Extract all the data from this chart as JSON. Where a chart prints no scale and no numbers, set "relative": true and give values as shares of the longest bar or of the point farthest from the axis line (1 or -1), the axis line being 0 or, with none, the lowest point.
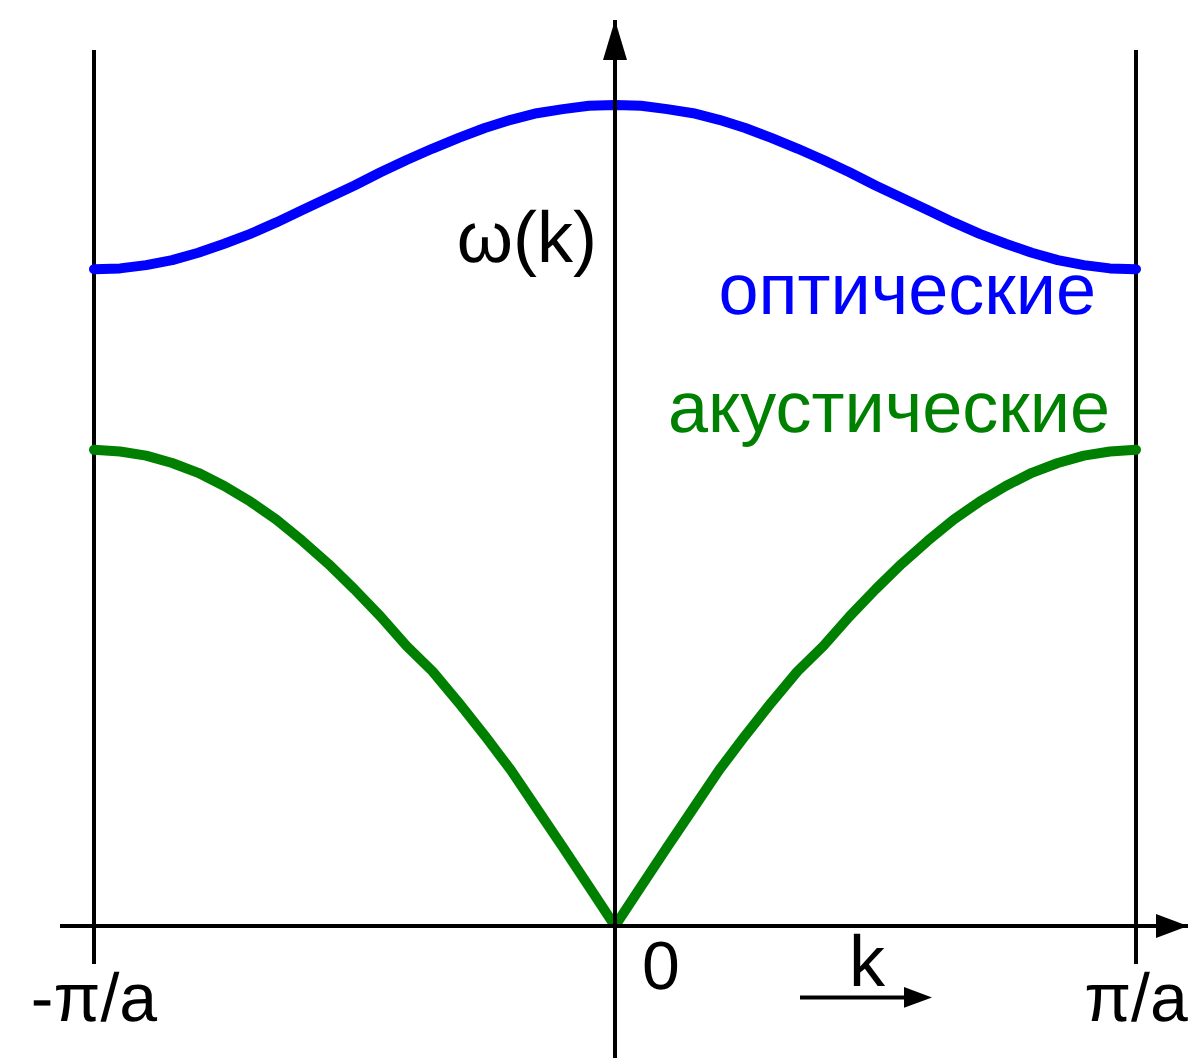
{
  "chart_data": {
    "type": "line",
    "relative": true,
    "xlabel": "k",
    "ylabel": "ω(k)",
    "categories": [
      "-π/a",
      null,
      null,
      null,
      null,
      null,
      null,
      null,
      null,
      null,
      null,
      null,
      null,
      null,
      null,
      null,
      null,
      null,
      null,
      null,
      null,
      null,
      null,
      null,
      null,
      null,
      null,
      null,
      null,
      null,
      null,
      null,
      null,
      null,
      null,
      null,
      null,
      null,
      null,
      null,
      "π/a"
    ],
    "series": [
      {
        "name": "оптические",
        "color": "#0000ff",
        "values": [
          0.8,
          0.801,
          0.805,
          0.811,
          0.82,
          0.831,
          0.843,
          0.857,
          0.872,
          0.887,
          0.902,
          0.918,
          0.933,
          0.947,
          0.96,
          0.972,
          0.982,
          0.99,
          0.995,
          0.999,
          1,
          0.999,
          0.995,
          0.99,
          0.982,
          0.972,
          0.96,
          0.947,
          0.933,
          0.918,
          0.902,
          0.887,
          0.872,
          0.857,
          0.843,
          0.831,
          0.82,
          0.811,
          0.805,
          0.801,
          0.8
        ]
      },
      {
        "name": "акустические",
        "color": "#008000",
        "values": [
          0.58,
          0.578,
          0.573,
          0.564,
          0.552,
          0.536,
          0.517,
          0.495,
          0.469,
          0.441,
          0.41,
          0.377,
          0.341,
          0.31,
          0.272,
          0.232,
          0.19,
          0.143,
          0.096,
          0.048,
          0,
          0.048,
          0.096,
          0.143,
          0.19,
          0.232,
          0.272,
          0.31,
          0.341,
          0.377,
          0.41,
          0.441,
          0.469,
          0.495,
          0.517,
          0.536,
          0.552,
          0.564,
          0.573,
          0.578,
          0.58
        ]
      }
    ],
    "annotations": [
      "0"
    ],
    "grid": "x",
    "marker": "none",
    "line_style": "solid"
  }
}
